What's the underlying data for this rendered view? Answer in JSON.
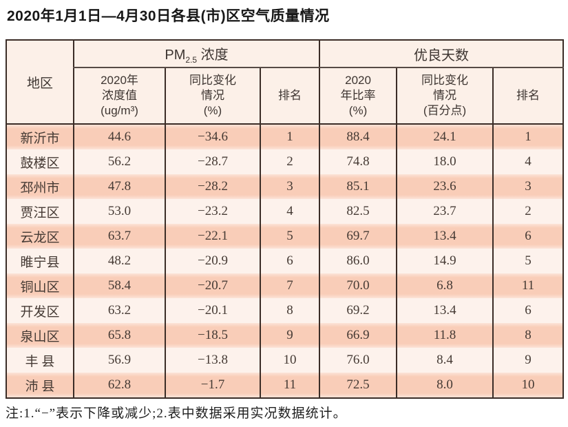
{
  "title": "2020年1月1日—4月30日各县(市)区空气质量情况",
  "table": {
    "region_header": "地区",
    "group_headers": {
      "pm25_prefix": "PM",
      "pm25_sub": "2.5",
      "pm25_suffix": " 浓度",
      "good_days": "优良天数"
    },
    "sub_headers": {
      "pm_value": "2020年\n浓度值\n(ug/m³)",
      "pm_change": "同比变化\n情况\n(%)",
      "pm_rank": "排名",
      "ratio": "2020\n年比率\n(%)",
      "ratio_change": "同比变化\n情况\n(百分点)",
      "ratio_rank": "排名"
    },
    "rows": [
      {
        "region": "新沂市",
        "pm_value": "44.6",
        "pm_change": "−34.6",
        "pm_rank": "1",
        "ratio": "88.4",
        "ratio_change": "24.1",
        "ratio_rank": "1"
      },
      {
        "region": "鼓楼区",
        "pm_value": "56.2",
        "pm_change": "−28.7",
        "pm_rank": "2",
        "ratio": "74.8",
        "ratio_change": "18.0",
        "ratio_rank": "4"
      },
      {
        "region": "邳州市",
        "pm_value": "47.8",
        "pm_change": "−28.2",
        "pm_rank": "3",
        "ratio": "85.1",
        "ratio_change": "23.6",
        "ratio_rank": "3"
      },
      {
        "region": "贾汪区",
        "pm_value": "53.0",
        "pm_change": "−23.2",
        "pm_rank": "4",
        "ratio": "82.5",
        "ratio_change": "23.7",
        "ratio_rank": "2"
      },
      {
        "region": "云龙区",
        "pm_value": "63.7",
        "pm_change": "−22.1",
        "pm_rank": "5",
        "ratio": "69.7",
        "ratio_change": "13.4",
        "ratio_rank": "6"
      },
      {
        "region": "睢宁县",
        "pm_value": "48.2",
        "pm_change": "−20.9",
        "pm_rank": "6",
        "ratio": "86.0",
        "ratio_change": "14.9",
        "ratio_rank": "5"
      },
      {
        "region": "铜山区",
        "pm_value": "58.4",
        "pm_change": "−20.7",
        "pm_rank": "7",
        "ratio": "70.0",
        "ratio_change": "6.8",
        "ratio_rank": "11"
      },
      {
        "region": "开发区",
        "pm_value": "63.2",
        "pm_change": "−20.1",
        "pm_rank": "8",
        "ratio": "69.2",
        "ratio_change": "13.4",
        "ratio_rank": "6"
      },
      {
        "region": "泉山区",
        "pm_value": "65.8",
        "pm_change": "−18.5",
        "pm_rank": "9",
        "ratio": "66.9",
        "ratio_change": "11.8",
        "ratio_rank": "8"
      },
      {
        "region": "丰 县",
        "pm_value": "56.9",
        "pm_change": "−13.8",
        "pm_rank": "10",
        "ratio": "76.0",
        "ratio_change": "8.4",
        "ratio_rank": "9"
      },
      {
        "region": "沛 县",
        "pm_value": "62.8",
        "pm_change": "−1.7",
        "pm_rank": "11",
        "ratio": "72.5",
        "ratio_change": "8.0",
        "ratio_rank": "10"
      }
    ]
  },
  "note": "注:1.“−”表示下降或减少;2.表中数据采用实况数据统计。",
  "colors": {
    "row_highlight": "#f9cdb8",
    "row_light": "#fdf2ec",
    "header_bg": "#fcf0e8",
    "border": "#3a2c26"
  },
  "chart_data": {
    "type": "table",
    "title": "2020年1月1日—4月30日各县(市)区空气质量情况",
    "column_groups": [
      "PM2.5浓度",
      "优良天数"
    ],
    "columns": [
      "地区",
      "2020年浓度值(ug/m³)",
      "同比变化情况(%)",
      "排名",
      "2020年比率(%)",
      "同比变化情况(百分点)",
      "排名"
    ],
    "rows": [
      [
        "新沂市",
        44.6,
        -34.6,
        1,
        88.4,
        24.1,
        1
      ],
      [
        "鼓楼区",
        56.2,
        -28.7,
        2,
        74.8,
        18.0,
        4
      ],
      [
        "邳州市",
        47.8,
        -28.2,
        3,
        85.1,
        23.6,
        3
      ],
      [
        "贾汪区",
        53.0,
        -23.2,
        4,
        82.5,
        23.7,
        2
      ],
      [
        "云龙区",
        63.7,
        -22.1,
        5,
        69.7,
        13.4,
        6
      ],
      [
        "睢宁县",
        48.2,
        -20.9,
        6,
        86.0,
        14.9,
        5
      ],
      [
        "铜山区",
        58.4,
        -20.7,
        7,
        70.0,
        6.8,
        11
      ],
      [
        "开发区",
        63.2,
        -20.1,
        8,
        69.2,
        13.4,
        6
      ],
      [
        "泉山区",
        65.8,
        -18.5,
        9,
        66.9,
        11.8,
        8
      ],
      [
        "丰县",
        56.9,
        -13.8,
        10,
        76.0,
        8.4,
        9
      ],
      [
        "沛县",
        62.8,
        -1.7,
        11,
        72.5,
        8.0,
        10
      ]
    ],
    "note": "注:1.“−”表示下降或减少;2.表中数据采用实况数据统计。"
  }
}
